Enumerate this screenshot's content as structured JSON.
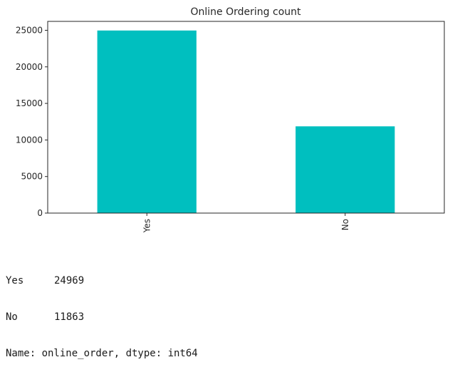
{
  "chart_data": {
    "type": "bar",
    "title": "Online Ordering count",
    "categories": [
      "Yes",
      "No"
    ],
    "values": [
      24969,
      11863
    ],
    "ylim": [
      0,
      26217
    ],
    "yticks": [
      0,
      5000,
      10000,
      15000,
      20000,
      25000
    ],
    "xlabel": "",
    "ylabel": "",
    "bar_color": "#00bfbf",
    "grid": false,
    "legend": "none"
  },
  "output": {
    "rows": [
      {
        "key": "Yes",
        "value": "24969"
      },
      {
        "key": "No",
        "value": "11863"
      }
    ],
    "footer": "Name: online_order, dtype: int64"
  }
}
